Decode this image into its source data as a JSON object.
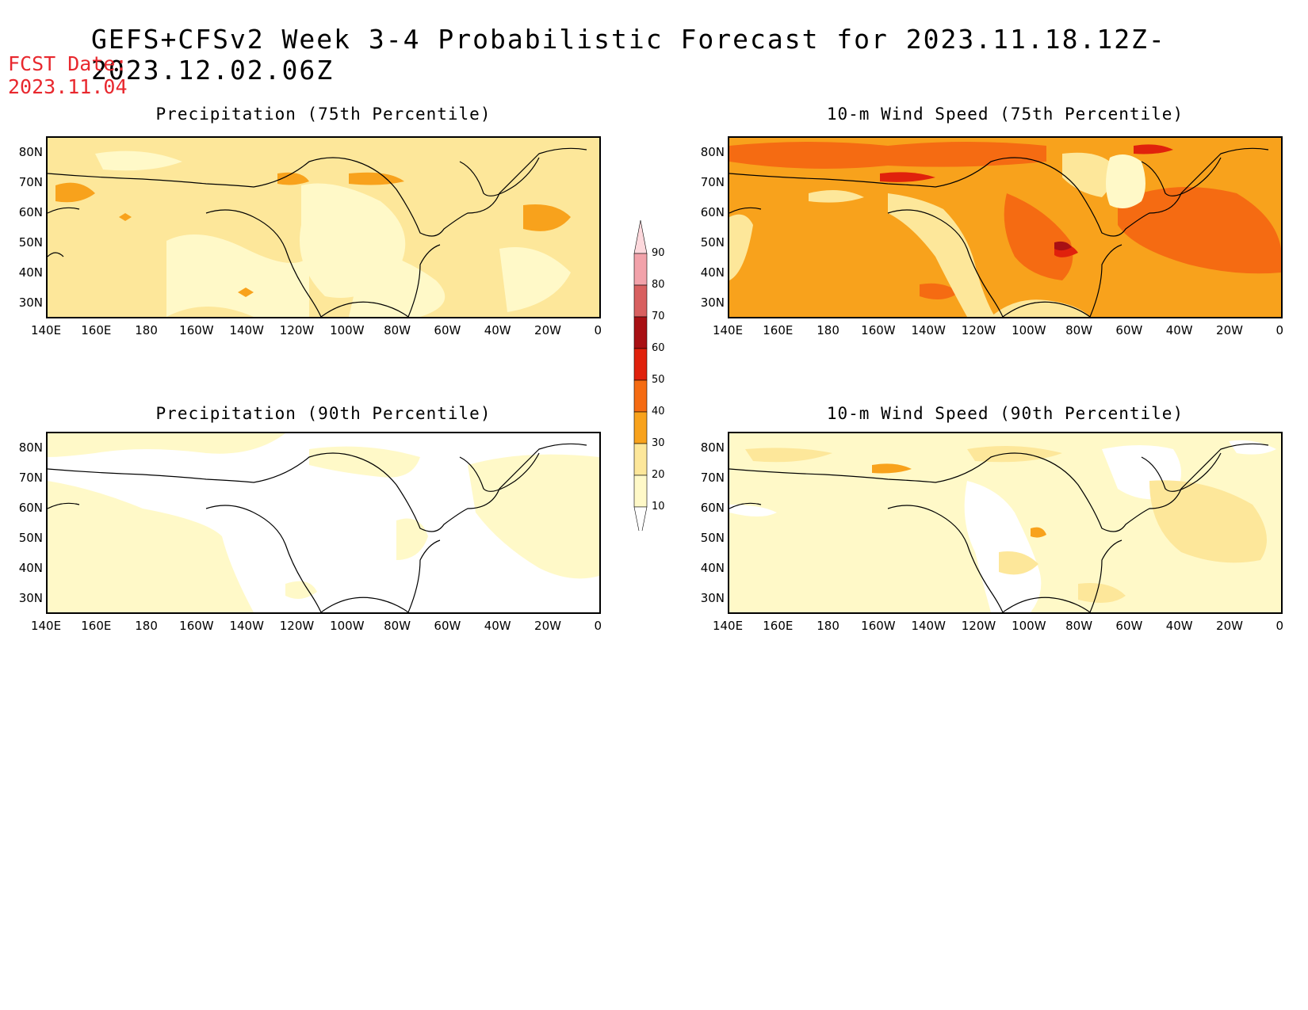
{
  "title": "GEFS+CFSv2 Week 3-4 Probabilistic Forecast for 2023.11.18.12Z-2023.12.02.06Z",
  "fcst_date_label": "FCST Date:",
  "fcst_date_value": "2023.11.04",
  "panels": [
    {
      "title": "Precipitation (75th Percentile)",
      "variable": "Precipitation",
      "percentile": "75th"
    },
    {
      "title": "10-m Wind Speed (75th Percentile)",
      "variable": "10-m Wind Speed",
      "percentile": "75th"
    },
    {
      "title": "Precipitation (90th Percentile)",
      "variable": "Precipitation",
      "percentile": "90th"
    },
    {
      "title": "10-m Wind Speed (90th Percentile)",
      "variable": "10-m Wind Speed",
      "percentile": "90th"
    }
  ],
  "lat_ticks": [
    "80N",
    "70N",
    "60N",
    "50N",
    "40N",
    "30N"
  ],
  "lon_ticks": [
    "140E",
    "160E",
    "180",
    "160W",
    "140W",
    "120W",
    "100W",
    "80W",
    "60W",
    "40W",
    "20W",
    "0"
  ],
  "colorbar": {
    "levels": [
      "10",
      "20",
      "30",
      "40",
      "50",
      "60",
      "70",
      "80",
      "90"
    ],
    "colors": [
      "#fff9c8",
      "#fde79a",
      "#f8a21c",
      "#f56b12",
      "#e0210c",
      "#a81014",
      "#d86060",
      "#f2a2aa",
      "#fdd8dc"
    ]
  }
}
